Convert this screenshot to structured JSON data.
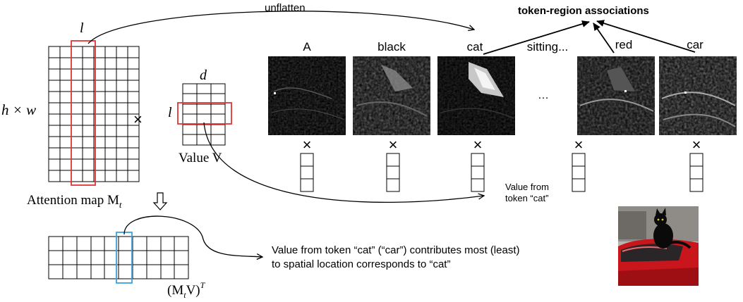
{
  "labels": {
    "unflatten": "unflatten",
    "token_region": "token-region associations",
    "l_top": "l",
    "hw": "h × w",
    "times": "×",
    "d": "d",
    "l_side": "l",
    "value_v": "Value V",
    "attention_map": "Attention map M",
    "attention_sub": "t",
    "result": "(M",
    "result_sub": "t",
    "result_tail": "V)",
    "result_sup": "T",
    "ellipsis": "…",
    "value_from": "Value from",
    "token_cat": "token “cat”",
    "desc_line1": "Value from token “cat” (“car”) contributes most (least)",
    "desc_line2": "to spatial location corresponds to “cat”"
  },
  "tokens": [
    "A",
    "black",
    "cat",
    "sitting...",
    "red",
    "car"
  ],
  "colors": {
    "highlight_red": "#e23434",
    "highlight_blue": "#3aa0dc",
    "line": "#000000"
  },
  "icons": {
    "down_arrow": "hollow-down-arrow-icon",
    "photo": "cat-on-red-car-photo"
  }
}
